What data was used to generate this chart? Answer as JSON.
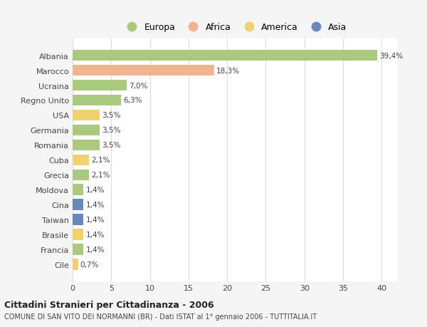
{
  "categories": [
    "Albania",
    "Marocco",
    "Ucraina",
    "Regno Unito",
    "USA",
    "Germania",
    "Romania",
    "Cuba",
    "Grecia",
    "Moldova",
    "Cina",
    "Taiwan",
    "Brasile",
    "Francia",
    "Cile"
  ],
  "values": [
    39.4,
    18.3,
    7.0,
    6.3,
    3.5,
    3.5,
    3.5,
    2.1,
    2.1,
    1.4,
    1.4,
    1.4,
    1.4,
    1.4,
    0.7
  ],
  "labels": [
    "39,4%",
    "18,3%",
    "7,0%",
    "6,3%",
    "3,5%",
    "3,5%",
    "3,5%",
    "2,1%",
    "2,1%",
    "1,4%",
    "1,4%",
    "1,4%",
    "1,4%",
    "1,4%",
    "0,7%"
  ],
  "continents": [
    "Europa",
    "Africa",
    "Europa",
    "Europa",
    "America",
    "Europa",
    "Europa",
    "America",
    "Europa",
    "Europa",
    "Asia",
    "Asia",
    "America",
    "Europa",
    "America"
  ],
  "continent_colors": {
    "Europa": "#aac97e",
    "Africa": "#f2b48e",
    "America": "#f0d070",
    "Asia": "#6688bb"
  },
  "legend_items": [
    "Europa",
    "Africa",
    "America",
    "Asia"
  ],
  "legend_colors": [
    "#aac97e",
    "#f2b48e",
    "#f0d070",
    "#6688bb"
  ],
  "title": "Cittadini Stranieri per Cittadinanza - 2006",
  "subtitle": "COMUNE DI SAN VITO DEI NORMANNI (BR) - Dati ISTAT al 1° gennaio 2006 - TUTTITALIA.IT",
  "xlim": [
    0,
    42
  ],
  "xticks": [
    0,
    5,
    10,
    15,
    20,
    25,
    30,
    35,
    40
  ],
  "background_color": "#f5f5f5",
  "bar_background": "#ffffff",
  "grid_color": "#dddddd",
  "text_color": "#444444"
}
